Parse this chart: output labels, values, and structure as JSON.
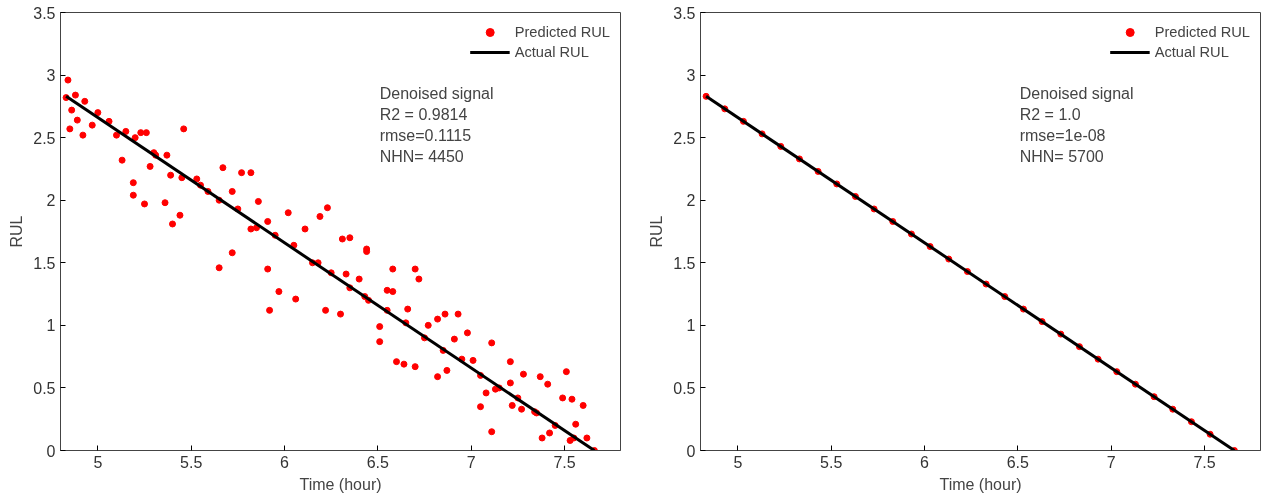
{
  "chart_data": [
    {
      "type": "scatter",
      "xlabel": "Time (hour)",
      "ylabel": "RUL",
      "xlim": [
        4.8,
        7.8
      ],
      "ylim": [
        0,
        3.5
      ],
      "xticks": [
        5,
        5.5,
        6,
        6.5,
        7,
        7.5
      ],
      "yticks": [
        0,
        0.5,
        1,
        1.5,
        2,
        2.5,
        3,
        3.5
      ],
      "grid": false,
      "legend": "top right",
      "annotations": [
        "Denoised signal",
        "R2   = 0.9814",
        "rmse=0.1115",
        "NHN= 4450"
      ],
      "series": [
        {
          "name": "Predicted RUL",
          "marker": "circle",
          "color": "#ff0000",
          "x": [
            4.84,
            4.83,
            4.85,
            4.88,
            4.86,
            4.92,
            4.89,
            4.93,
            4.97,
            5.06,
            5.15,
            5.23,
            5.26,
            5.13,
            5.19,
            5.19,
            5.25,
            5.28,
            5.36,
            5.4,
            5.46,
            5.44,
            5.31,
            5.37,
            5.39,
            5.53,
            5.67,
            5.77,
            5.82,
            5.86,
            5.72,
            5.59,
            6.02,
            6.23,
            6.19,
            6.11,
            6.31,
            6.35,
            6.44,
            5.91,
            5.82,
            5.65,
            5.72,
            5.92,
            5.97,
            6.06,
            5.91,
            6.22,
            6.3,
            6.44,
            6.4,
            6.51,
            6.51,
            6.58,
            6.58,
            6.6,
            6.64,
            6.7,
            6.7,
            6.72,
            6.82,
            6.82,
            6.86,
            6.93,
            6.87,
            6.98,
            7.05,
            7.08,
            7.11,
            7.11,
            7.21,
            7.22,
            7.28,
            7.37,
            7.41,
            7.38,
            7.42,
            7.51,
            7.49,
            7.54,
            7.6,
            7.56,
            7.53,
            7.62,
            7.66,
            7.27,
            7.34,
            7.13,
            7.01,
            6.91,
            6.77,
            6.66,
            6.55,
            6.43,
            6.33,
            6.18,
            7.21,
            5.0,
            5.1,
            5.2,
            5.3,
            5.45,
            5.55,
            5.65,
            5.75,
            5.85,
            5.95,
            6.05,
            6.15,
            6.25,
            6.35,
            6.45,
            6.55,
            6.65,
            6.75,
            6.85,
            6.95,
            7.05,
            7.15,
            7.25,
            7.35,
            7.45,
            7.55
          ],
          "values": [
            2.96,
            2.82,
            2.57,
            2.84,
            2.72,
            2.52,
            2.64,
            2.79,
            2.6,
            2.63,
            2.55,
            2.54,
            2.54,
            2.32,
            2.14,
            2.04,
            1.97,
            2.27,
            1.98,
            1.81,
            2.57,
            1.88,
            2.36,
            2.36,
            2.2,
            2.17,
            2.26,
            2.22,
            2.22,
            1.99,
            2.07,
            2.07,
            1.9,
            1.94,
            1.87,
            1.77,
            1.69,
            1.7,
            1.61,
            1.83,
            1.77,
            1.46,
            1.58,
            1.12,
            1.27,
            1.21,
            1.45,
            1.12,
            1.09,
            1.59,
            1.37,
            0.99,
            0.87,
            1.27,
            1.45,
            0.71,
            0.69,
            0.67,
            1.45,
            1.37,
            1.05,
            0.59,
            1.09,
            1.09,
            0.64,
            0.94,
            0.35,
            0.46,
            0.86,
            0.15,
            0.71,
            0.36,
            0.61,
            0.59,
            0.53,
            0.1,
            0.14,
            0.63,
            0.42,
            0.41,
            0.36,
            0.21,
            0.08,
            0.1,
            0.0,
            0.33,
            0.31,
            0.49,
            0.72,
            0.89,
            1.0,
            1.13,
            1.28,
            1.23,
            1.41,
            1.5,
            0.54,
            2.7,
            2.52,
            2.5,
            2.38,
            2.18,
            2.12,
            2.0,
            1.93,
            1.78,
            1.72,
            1.64,
            1.5,
            1.42,
            1.3,
            1.2,
            1.12,
            1.02,
            0.9,
            0.8,
            0.73,
            0.6,
            0.5,
            0.42,
            0.3,
            0.2,
            0.1
          ]
        },
        {
          "name": "Actual RUL",
          "type": "line",
          "color": "#000000",
          "x": [
            4.83,
            7.66
          ],
          "values": [
            2.83,
            0
          ]
        }
      ]
    },
    {
      "type": "scatter",
      "xlabel": "Time (hour)",
      "ylabel": "RUL",
      "xlim": [
        4.8,
        7.8
      ],
      "ylim": [
        0,
        3.5
      ],
      "xticks": [
        5,
        5.5,
        6,
        6.5,
        7,
        7.5
      ],
      "yticks": [
        0,
        0.5,
        1,
        1.5,
        2,
        2.5,
        3,
        3.5
      ],
      "grid": false,
      "legend": "top right",
      "annotations": [
        "Denoised signal",
        "R2   = 1.0",
        "rmse=1e-08",
        "NHN= 5700"
      ],
      "series": [
        {
          "name": "Predicted RUL",
          "marker": "circle",
          "color": "#ff0000",
          "x": [
            4.83,
            4.93,
            5.03,
            5.13,
            5.23,
            5.33,
            5.43,
            5.53,
            5.63,
            5.73,
            5.83,
            5.93,
            6.03,
            6.13,
            6.23,
            6.33,
            6.43,
            6.53,
            6.63,
            6.73,
            6.83,
            6.93,
            7.03,
            7.13,
            7.23,
            7.33,
            7.43,
            7.53,
            7.66
          ],
          "values": [
            2.83,
            2.73,
            2.63,
            2.53,
            2.43,
            2.33,
            2.23,
            2.13,
            2.03,
            1.93,
            1.83,
            1.73,
            1.63,
            1.53,
            1.43,
            1.33,
            1.23,
            1.13,
            1.03,
            0.93,
            0.83,
            0.73,
            0.63,
            0.53,
            0.43,
            0.33,
            0.23,
            0.13,
            0.0
          ]
        },
        {
          "name": "Actual RUL",
          "type": "line",
          "color": "#000000",
          "x": [
            4.83,
            7.66
          ],
          "values": [
            2.83,
            0
          ]
        }
      ]
    }
  ]
}
